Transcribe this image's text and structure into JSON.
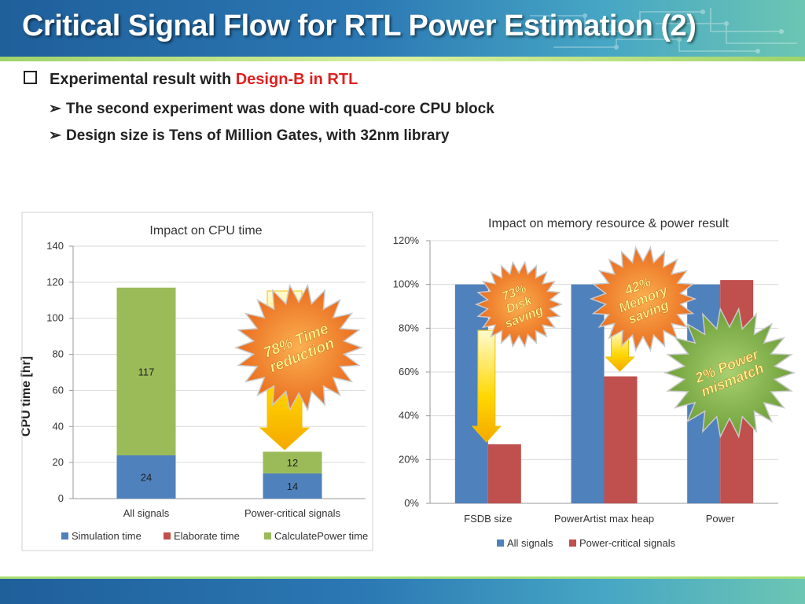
{
  "slide": {
    "title": "Critical Signal Flow for RTL Power Estimation (2)",
    "bullet_main_prefix": "Experimental result with ",
    "bullet_main_highlight": "Design-B in RTL",
    "sub_bullets": [
      "The second experiment was done with quad-core CPU block",
      "Design size is Tens of Million Gates, with 32nm library"
    ],
    "colors": {
      "header": "#2b78b4",
      "highlight": "#e02020"
    }
  },
  "chart_data": [
    {
      "type": "bar",
      "stacked": true,
      "title": "Impact on CPU time",
      "ylabel": "CPU time [hr]",
      "categories": [
        "All signals",
        "Power-critical signals"
      ],
      "series": [
        {
          "name": "Simulation time",
          "values": [
            24,
            14
          ],
          "color": "#4f81bd"
        },
        {
          "name": "Elaborate time",
          "values": [
            0,
            0
          ],
          "color": "#c0504d"
        },
        {
          "name": "CalculatePower time",
          "values": [
            93,
            12
          ],
          "color": "#9bbb59"
        }
      ],
      "data_labels": [
        [
          "24",
          "117"
        ],
        [
          "14",
          "12"
        ]
      ],
      "ylim": [
        0,
        140
      ],
      "yticks": [
        "0",
        "20",
        "40",
        "60",
        "80",
        "100",
        "120",
        "140"
      ],
      "grid": true,
      "legend": "bottom",
      "annotation": {
        "text_line1": "78% Time",
        "text_line2": "reduction"
      }
    },
    {
      "type": "bar",
      "title": "Impact on memory resource & power result",
      "categories": [
        "FSDB size",
        "PowerArtist max heap",
        "Power"
      ],
      "series": [
        {
          "name": "All signals",
          "values": [
            100,
            100,
            100
          ],
          "color": "#4f81bd"
        },
        {
          "name": "Power-critical signals",
          "values": [
            27,
            58,
            102
          ],
          "color": "#c0504d"
        }
      ],
      "ylim": [
        0,
        120
      ],
      "yticks": [
        "0%",
        "20%",
        "40%",
        "60%",
        "80%",
        "100%",
        "120%"
      ],
      "grid": true,
      "legend": "bottom",
      "annotations": [
        {
          "lines": [
            "73%",
            "Disk",
            "saving"
          ]
        },
        {
          "lines": [
            "42%",
            "Memory",
            "saving"
          ]
        },
        {
          "lines": [
            "2% Power",
            "mismatch"
          ]
        }
      ]
    }
  ]
}
